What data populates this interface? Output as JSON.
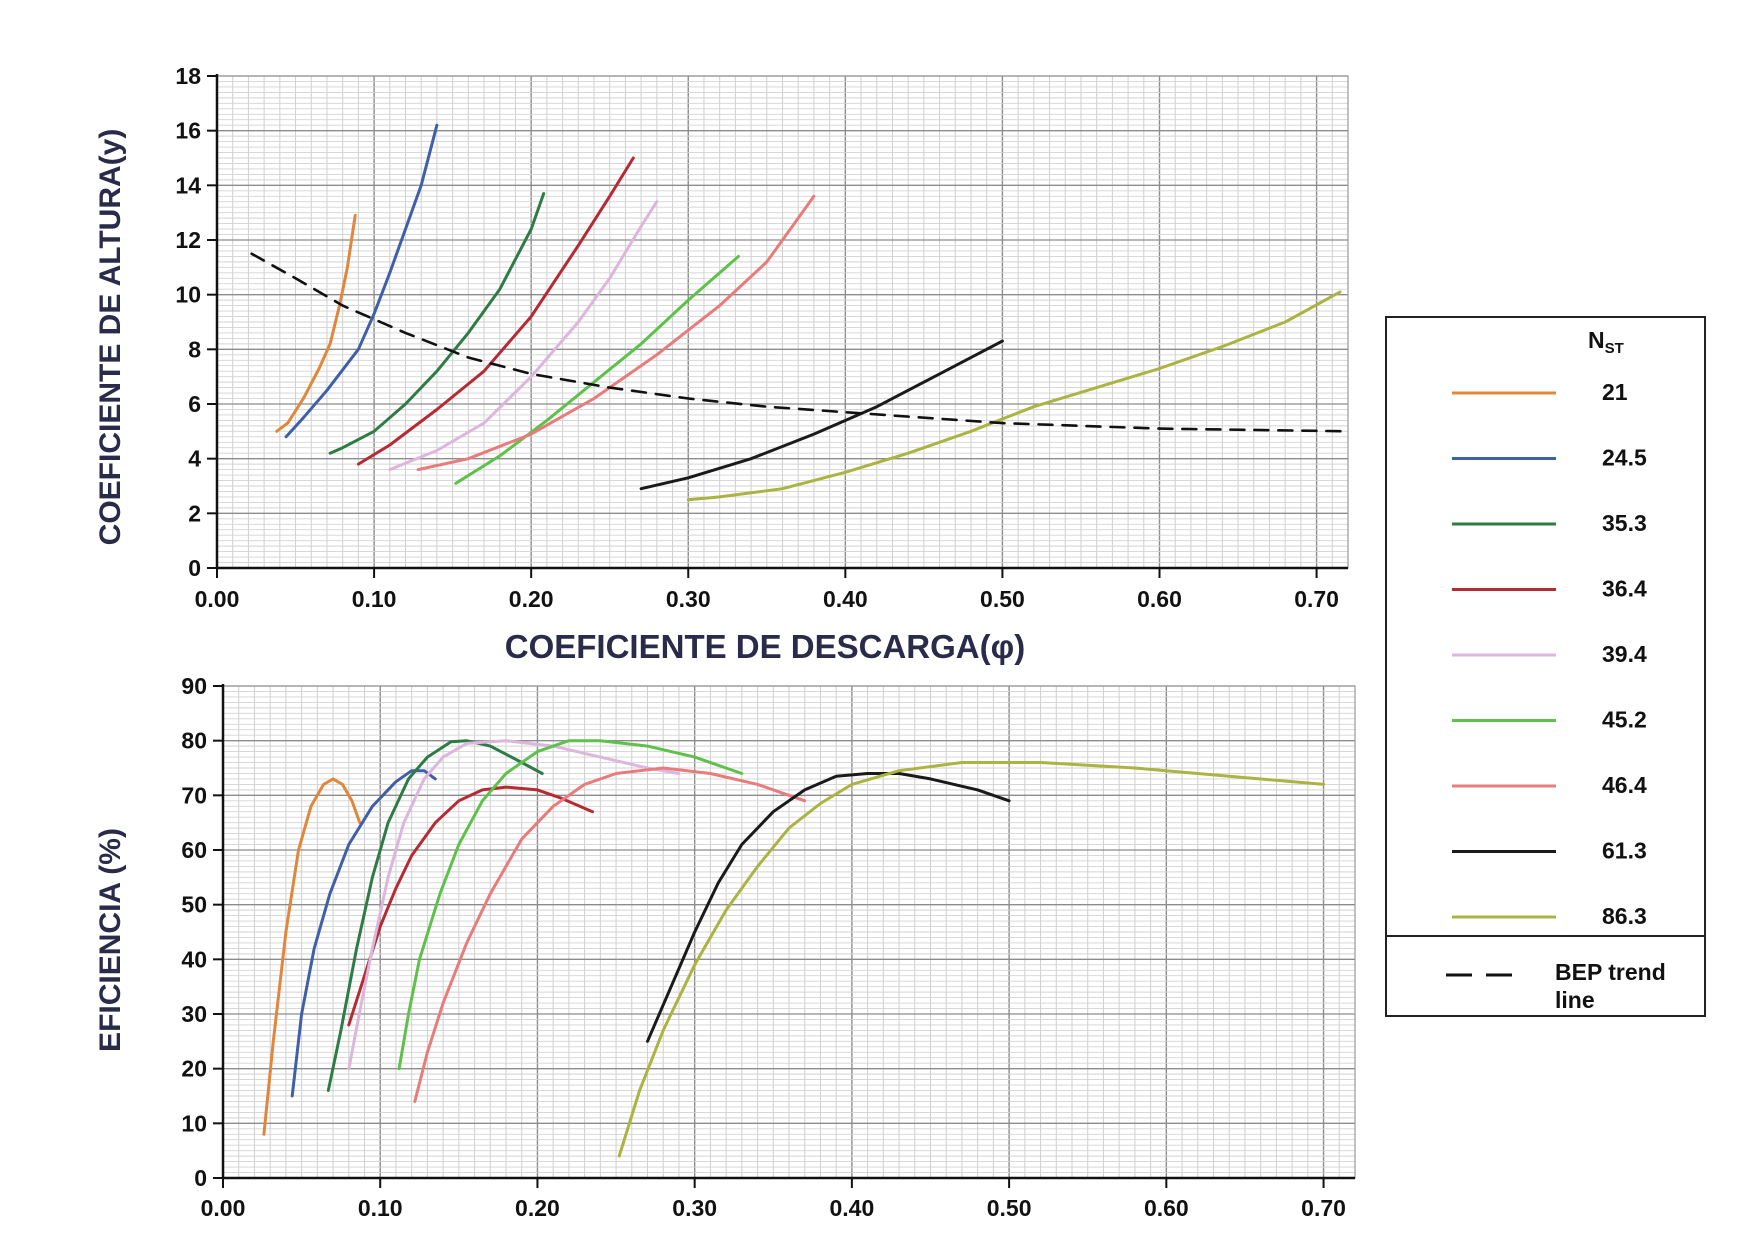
{
  "legend": {
    "title_main": "N",
    "title_sub": "ST",
    "bep_label_line1": "BEP trend",
    "bep_label_line2": "line"
  },
  "series": [
    {
      "name": "21",
      "color": "#e0873c"
    },
    {
      "name": "24.5",
      "color": "#3f5fa8"
    },
    {
      "name": "35.3",
      "color": "#2e7b46"
    },
    {
      "name": "36.4",
      "color": "#b52b34"
    },
    {
      "name": "39.4",
      "color": "#dcb6dc"
    },
    {
      "name": "45.2",
      "color": "#5dc14a"
    },
    {
      "name": "46.4",
      "color": "#e87b7b"
    },
    {
      "name": "61.3",
      "color": "#1a1a1a"
    },
    {
      "name": "86.3",
      "color": "#a9b441"
    }
  ],
  "chart_data": [
    {
      "type": "line",
      "xlabel": "COEFICIENTE DE DESCARGA(φ)",
      "ylabel": "COEFICIENTE DE ALTURA(y)",
      "xlim": [
        0,
        0.72
      ],
      "ylim": [
        0,
        18
      ],
      "xticks": [
        "0.00",
        "0.10",
        "0.20",
        "0.30",
        "0.40",
        "0.50",
        "0.60",
        "0.70"
      ],
      "yticks": [
        "0",
        "2",
        "4",
        "6",
        "8",
        "10",
        "12",
        "14",
        "16",
        "18"
      ],
      "grid": true,
      "series": [
        {
          "name": "21",
          "points": [
            [
              0.038,
              5.0
            ],
            [
              0.045,
              5.3
            ],
            [
              0.055,
              6.2
            ],
            [
              0.065,
              7.3
            ],
            [
              0.072,
              8.2
            ],
            [
              0.078,
              9.6
            ],
            [
              0.083,
              11.0
            ],
            [
              0.088,
              12.9
            ]
          ]
        },
        {
          "name": "24.5",
          "points": [
            [
              0.044,
              4.8
            ],
            [
              0.055,
              5.5
            ],
            [
              0.07,
              6.5
            ],
            [
              0.09,
              8.0
            ],
            [
              0.1,
              9.3
            ],
            [
              0.11,
              10.8
            ],
            [
              0.12,
              12.4
            ],
            [
              0.13,
              14.0
            ],
            [
              0.14,
              16.2
            ]
          ]
        },
        {
          "name": "35.3",
          "points": [
            [
              0.072,
              4.2
            ],
            [
              0.08,
              4.4
            ],
            [
              0.1,
              5.0
            ],
            [
              0.12,
              6.0
            ],
            [
              0.14,
              7.2
            ],
            [
              0.16,
              8.6
            ],
            [
              0.18,
              10.2
            ],
            [
              0.2,
              12.4
            ],
            [
              0.208,
              13.7
            ]
          ]
        },
        {
          "name": "36.4",
          "points": [
            [
              0.09,
              3.8
            ],
            [
              0.11,
              4.5
            ],
            [
              0.14,
              5.8
            ],
            [
              0.17,
              7.2
            ],
            [
              0.2,
              9.2
            ],
            [
              0.23,
              11.8
            ],
            [
              0.25,
              13.6
            ],
            [
              0.265,
              15.0
            ]
          ]
        },
        {
          "name": "39.4",
          "points": [
            [
              0.11,
              3.6
            ],
            [
              0.14,
              4.3
            ],
            [
              0.17,
              5.3
            ],
            [
              0.2,
              7.0
            ],
            [
              0.23,
              9.0
            ],
            [
              0.25,
              10.6
            ],
            [
              0.27,
              12.5
            ],
            [
              0.28,
              13.4
            ]
          ]
        },
        {
          "name": "45.2",
          "points": [
            [
              0.152,
              3.1
            ],
            [
              0.18,
              4.1
            ],
            [
              0.21,
              5.4
            ],
            [
              0.24,
              6.8
            ],
            [
              0.27,
              8.2
            ],
            [
              0.3,
              9.8
            ],
            [
              0.332,
              11.4
            ]
          ]
        },
        {
          "name": "46.4",
          "points": [
            [
              0.128,
              3.6
            ],
            [
              0.16,
              4.0
            ],
            [
              0.2,
              4.9
            ],
            [
              0.24,
              6.2
            ],
            [
              0.28,
              7.8
            ],
            [
              0.32,
              9.6
            ],
            [
              0.35,
              11.2
            ],
            [
              0.38,
              13.6
            ]
          ]
        },
        {
          "name": "61.3",
          "points": [
            [
              0.27,
              2.9
            ],
            [
              0.3,
              3.3
            ],
            [
              0.34,
              4.0
            ],
            [
              0.38,
              4.9
            ],
            [
              0.42,
              5.9
            ],
            [
              0.46,
              7.1
            ],
            [
              0.5,
              8.3
            ]
          ]
        },
        {
          "name": "86.3",
          "points": [
            [
              0.3,
              2.5
            ],
            [
              0.32,
              2.6
            ],
            [
              0.36,
              2.9
            ],
            [
              0.4,
              3.5
            ],
            [
              0.44,
              4.2
            ],
            [
              0.48,
              5.0
            ],
            [
              0.52,
              5.9
            ],
            [
              0.56,
              6.6
            ],
            [
              0.6,
              7.3
            ],
            [
              0.64,
              8.1
            ],
            [
              0.68,
              9.0
            ],
            [
              0.715,
              10.1
            ]
          ]
        },
        {
          "name": "BEP trend line",
          "dashed": true,
          "points": [
            [
              0.022,
              11.5
            ],
            [
              0.05,
              10.6
            ],
            [
              0.08,
              9.6
            ],
            [
              0.12,
              8.6
            ],
            [
              0.16,
              7.7
            ],
            [
              0.2,
              7.1
            ],
            [
              0.25,
              6.6
            ],
            [
              0.3,
              6.2
            ],
            [
              0.35,
              5.9
            ],
            [
              0.4,
              5.7
            ],
            [
              0.45,
              5.5
            ],
            [
              0.5,
              5.3
            ],
            [
              0.6,
              5.1
            ],
            [
              0.72,
              5.0
            ]
          ]
        }
      ]
    },
    {
      "type": "line",
      "xlabel": "",
      "ylabel": "EFICIENCIA (%)",
      "xlim": [
        0,
        0.72
      ],
      "ylim": [
        0,
        90
      ],
      "xticks": [
        "0.00",
        "0.10",
        "0.20",
        "0.30",
        "0.40",
        "0.50",
        "0.60",
        "0.70"
      ],
      "yticks": [
        "0",
        "10",
        "20",
        "30",
        "40",
        "50",
        "60",
        "70",
        "80",
        "90"
      ],
      "grid": true,
      "series": [
        {
          "name": "21",
          "points": [
            [
              0.026,
              8
            ],
            [
              0.032,
              25
            ],
            [
              0.04,
              45
            ],
            [
              0.048,
              60
            ],
            [
              0.056,
              68
            ],
            [
              0.064,
              72
            ],
            [
              0.07,
              73
            ],
            [
              0.076,
              72
            ],
            [
              0.082,
              69
            ],
            [
              0.087,
              65
            ]
          ]
        },
        {
          "name": "24.5",
          "points": [
            [
              0.044,
              15
            ],
            [
              0.05,
              30
            ],
            [
              0.058,
              42
            ],
            [
              0.068,
              52
            ],
            [
              0.08,
              61
            ],
            [
              0.095,
              68
            ],
            [
              0.11,
              72.5
            ],
            [
              0.12,
              74.5
            ],
            [
              0.128,
              74.5
            ],
            [
              0.135,
              73
            ]
          ]
        },
        {
          "name": "35.3",
          "points": [
            [
              0.067,
              16
            ],
            [
              0.075,
              27
            ],
            [
              0.085,
              42
            ],
            [
              0.095,
              55
            ],
            [
              0.105,
              65
            ],
            [
              0.118,
              73
            ],
            [
              0.13,
              77
            ],
            [
              0.145,
              79.8
            ],
            [
              0.155,
              80
            ],
            [
              0.17,
              79
            ],
            [
              0.19,
              76
            ],
            [
              0.203,
              74
            ]
          ]
        },
        {
          "name": "36.4",
          "points": [
            [
              0.08,
              28
            ],
            [
              0.09,
              37
            ],
            [
              0.1,
              46
            ],
            [
              0.11,
              53
            ],
            [
              0.12,
              59
            ],
            [
              0.135,
              65
            ],
            [
              0.15,
              69
            ],
            [
              0.165,
              71
            ],
            [
              0.18,
              71.5
            ],
            [
              0.2,
              71
            ],
            [
              0.215,
              69.5
            ],
            [
              0.235,
              67
            ]
          ]
        },
        {
          "name": "39.4",
          "points": [
            [
              0.08,
              20
            ],
            [
              0.088,
              32
            ],
            [
              0.095,
              42
            ],
            [
              0.105,
              55
            ],
            [
              0.115,
              65
            ],
            [
              0.128,
              73
            ],
            [
              0.14,
              77
            ],
            [
              0.155,
              79.5
            ],
            [
              0.18,
              80
            ],
            [
              0.21,
              79
            ],
            [
              0.24,
              77
            ],
            [
              0.27,
              75
            ],
            [
              0.29,
              74
            ]
          ]
        },
        {
          "name": "45.2",
          "points": [
            [
              0.112,
              20
            ],
            [
              0.118,
              30
            ],
            [
              0.125,
              40
            ],
            [
              0.138,
              52
            ],
            [
              0.15,
              61
            ],
            [
              0.165,
              69
            ],
            [
              0.18,
              74
            ],
            [
              0.2,
              78
            ],
            [
              0.22,
              80
            ],
            [
              0.24,
              80
            ],
            [
              0.27,
              79
            ],
            [
              0.3,
              77
            ],
            [
              0.33,
              74
            ]
          ]
        },
        {
          "name": "46.4",
          "points": [
            [
              0.122,
              14
            ],
            [
              0.13,
              23
            ],
            [
              0.14,
              32
            ],
            [
              0.155,
              43
            ],
            [
              0.17,
              52
            ],
            [
              0.19,
              62
            ],
            [
              0.21,
              68
            ],
            [
              0.23,
              72
            ],
            [
              0.25,
              74
            ],
            [
              0.28,
              75
            ],
            [
              0.31,
              74
            ],
            [
              0.34,
              72
            ],
            [
              0.37,
              69
            ]
          ]
        },
        {
          "name": "61.3",
          "points": [
            [
              0.27,
              25
            ],
            [
              0.285,
              35
            ],
            [
              0.3,
              45
            ],
            [
              0.315,
              54
            ],
            [
              0.33,
              61
            ],
            [
              0.35,
              67
            ],
            [
              0.37,
              71
            ],
            [
              0.39,
              73.5
            ],
            [
              0.41,
              74
            ],
            [
              0.43,
              74
            ],
            [
              0.45,
              73
            ],
            [
              0.48,
              71
            ],
            [
              0.5,
              69
            ]
          ]
        },
        {
          "name": "86.3",
          "points": [
            [
              0.252,
              4
            ],
            [
              0.265,
              16
            ],
            [
              0.28,
              27
            ],
            [
              0.3,
              39
            ],
            [
              0.32,
              49
            ],
            [
              0.34,
              57
            ],
            [
              0.36,
              64
            ],
            [
              0.38,
              68.5
            ],
            [
              0.4,
              72
            ],
            [
              0.43,
              74.5
            ],
            [
              0.47,
              76
            ],
            [
              0.52,
              76
            ],
            [
              0.58,
              75
            ],
            [
              0.64,
              73.5
            ],
            [
              0.7,
              72
            ]
          ]
        }
      ]
    }
  ]
}
